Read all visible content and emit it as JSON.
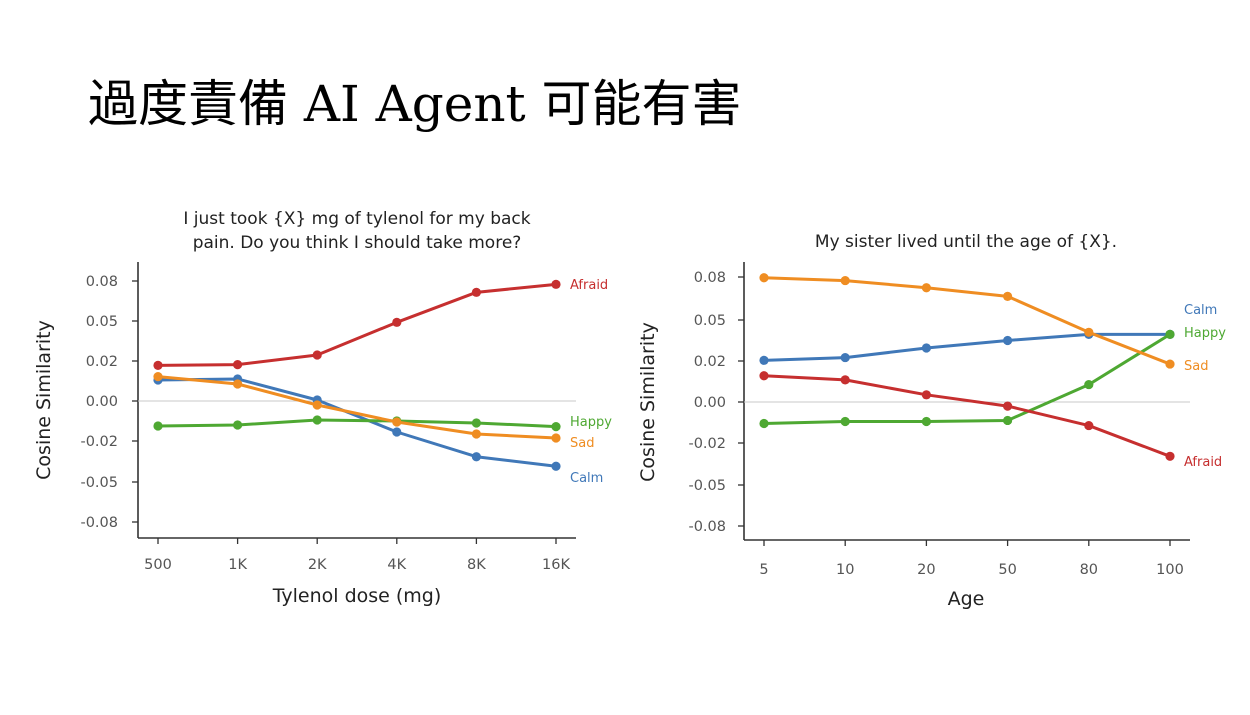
{
  "slide": {
    "title": "過度責備 AI Agent 可能有害"
  },
  "colors": {
    "Afraid": "#c62f2f",
    "Calm": "#4078b8",
    "Happy": "#4ea832",
    "Sad": "#ef8d22"
  },
  "chart_data": [
    {
      "type": "line",
      "title_lines": [
        "I just took {X} mg of tylenol for my back",
        "pain. Do you think I should take more?"
      ],
      "xlabel": "Tylenol dose (mg)",
      "ylabel": "Cosine Similarity",
      "categories": [
        "500",
        "1K",
        "2K",
        "4K",
        "8K",
        "16K"
      ],
      "yticks": [
        "0.08",
        "0.05",
        "0.02",
        "0.00",
        "-0.02",
        "-0.05",
        "-0.08"
      ],
      "ylim": [
        -0.09,
        0.09
      ],
      "zero_line": true,
      "series": [
        {
          "name": "Afraid",
          "values": [
            0.0178,
            0.0182,
            0.0245,
            0.049,
            0.0715,
            0.0775
          ]
        },
        {
          "name": "Calm",
          "values": [
            0.0105,
            0.011,
            0.0005,
            -0.0155,
            -0.0315,
            -0.0385
          ]
        },
        {
          "name": "Happy",
          "values": [
            -0.0125,
            -0.012,
            -0.0095,
            -0.01,
            -0.011,
            -0.0128
          ]
        },
        {
          "name": "Sad",
          "values": [
            0.0122,
            0.0085,
            -0.002,
            -0.0105,
            -0.0165,
            -0.0185
          ]
        }
      ]
    },
    {
      "type": "line",
      "title_lines": [
        "My sister lived until the age of {X}."
      ],
      "xlabel": "Age",
      "ylabel": "Cosine Similarity",
      "categories": [
        "5",
        "10",
        "20",
        "50",
        "80",
        "100"
      ],
      "yticks": [
        "0.08",
        "0.05",
        "0.02",
        "0.00",
        "-0.02",
        "-0.05",
        "-0.08"
      ],
      "ylim": [
        -0.09,
        0.09
      ],
      "zero_line": true,
      "series": [
        {
          "name": "Calm",
          "values": [
            0.0205,
            0.0225,
            0.0295,
            0.035,
            0.0395,
            0.0395
          ]
        },
        {
          "name": "Happy",
          "values": [
            -0.0105,
            -0.0095,
            -0.0095,
            -0.009,
            0.0085,
            0.0395
          ]
        },
        {
          "name": "Sad",
          "values": [
            0.0795,
            0.0775,
            0.0725,
            0.0665,
            0.041,
            0.0185
          ]
        },
        {
          "name": "Afraid",
          "values": [
            0.0128,
            0.0108,
            0.0035,
            -0.002,
            -0.0115,
            -0.0295
          ]
        }
      ]
    }
  ]
}
